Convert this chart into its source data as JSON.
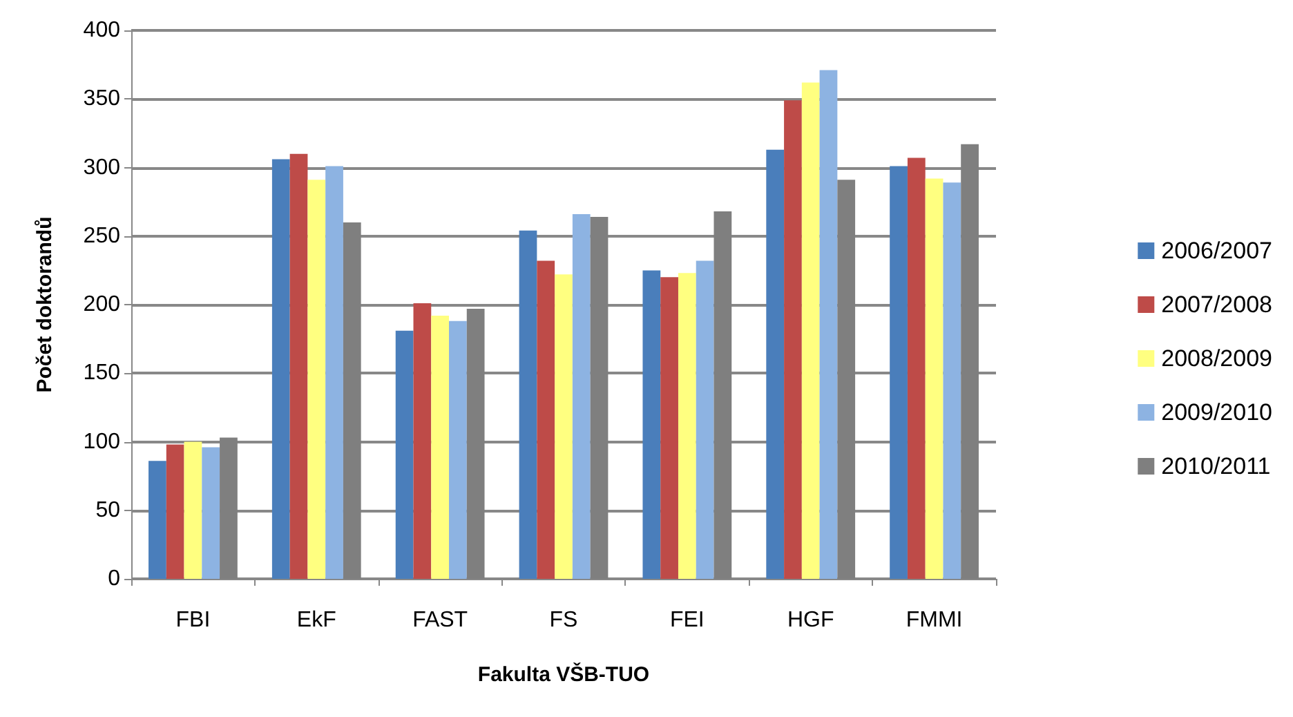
{
  "chart_data": {
    "type": "bar",
    "xlabel": "Fakulta VŠB-TUO",
    "ylabel": "Počet doktorandů",
    "categories": [
      "FBI",
      "EkF",
      "FAST",
      "FS",
      "FEI",
      "HGF",
      "FMMI"
    ],
    "series": [
      {
        "name": "2006/2007",
        "color": "#4a7ebb",
        "values": [
          86,
          306,
          181,
          254,
          225,
          313,
          301
        ]
      },
      {
        "name": "2007/2008",
        "color": "#be4b48",
        "values": [
          98,
          310,
          201,
          232,
          220,
          349,
          307
        ]
      },
      {
        "name": "2008/2009",
        "color": "#ffff80",
        "values": [
          100,
          291,
          192,
          222,
          223,
          362,
          292
        ]
      },
      {
        "name": "2009/2010",
        "color": "#8db3e2",
        "values": [
          96,
          301,
          188,
          266,
          232,
          371,
          289
        ]
      },
      {
        "name": "2010/2011",
        "color": "#7f7f7f",
        "values": [
          103,
          260,
          197,
          264,
          268,
          291,
          317
        ]
      }
    ],
    "ylim": [
      0,
      400
    ],
    "yticks": [
      0,
      50,
      100,
      150,
      200,
      250,
      300,
      350,
      400
    ],
    "grid": "y",
    "legend": "right"
  }
}
